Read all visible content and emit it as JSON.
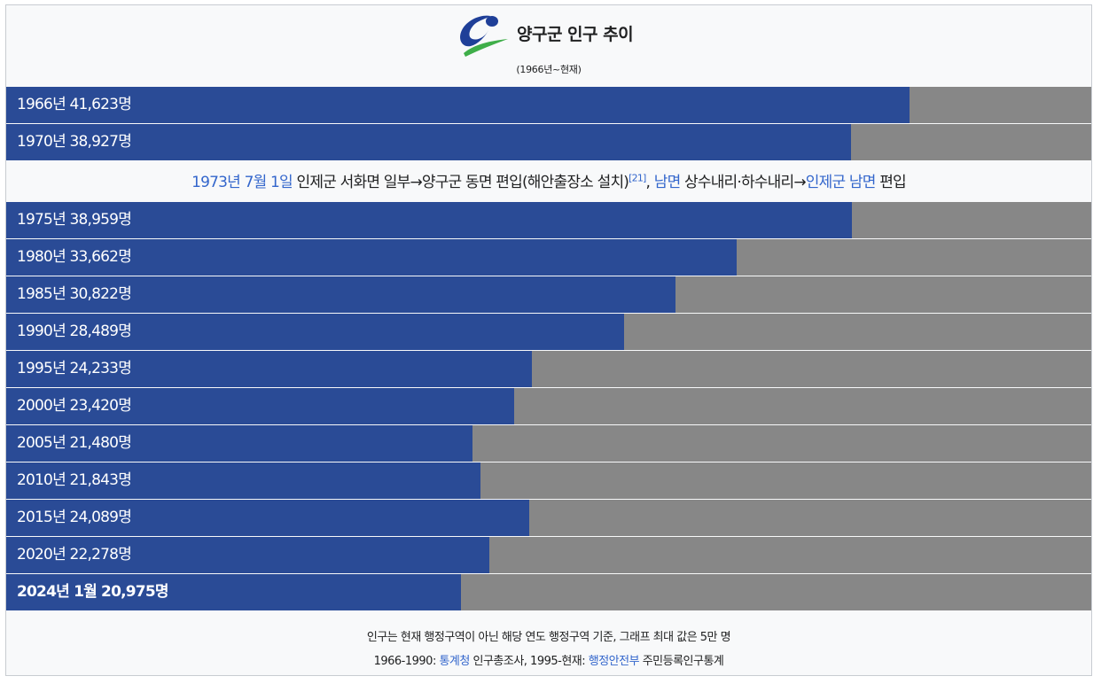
{
  "header": {
    "title": "양구군 인구 추이",
    "subtitle": "(1966년~현재)",
    "logo_icon": "yanggu-emblem-icon"
  },
  "colors": {
    "bar": "#2a4b96",
    "remainder": "#878787",
    "link": "#3366cc",
    "logo_blue": "#1f3f98",
    "logo_green": "#3fae49"
  },
  "chart_data": {
    "type": "bar",
    "orientation": "horizontal",
    "max": 50000,
    "unit": "명",
    "rows": [
      {
        "label": "1966년 41,623명",
        "value": 41623,
        "bold": false
      },
      {
        "label": "1970년 38,927명",
        "value": 38927,
        "bold": false
      },
      {
        "label": "1975년 38,959명",
        "value": 38959,
        "bold": false
      },
      {
        "label": "1980년 33,662명",
        "value": 33662,
        "bold": false
      },
      {
        "label": "1985년 30,822명",
        "value": 30822,
        "bold": false
      },
      {
        "label": "1990년 28,489명",
        "value": 28489,
        "bold": false
      },
      {
        "label": "1995년 24,233명",
        "value": 24233,
        "bold": false
      },
      {
        "label": "2000년 23,420명",
        "value": 23420,
        "bold": false
      },
      {
        "label": "2005년 21,480명",
        "value": 21480,
        "bold": false
      },
      {
        "label": "2010년 21,843명",
        "value": 21843,
        "bold": false
      },
      {
        "label": "2015년 24,089명",
        "value": 24089,
        "bold": false
      },
      {
        "label": "2020년 22,278명",
        "value": 22278,
        "bold": false
      },
      {
        "label": "2024년 1월 20,975명",
        "value": 20975,
        "bold": true
      }
    ]
  },
  "note": {
    "date_link": "1973년 7월 1일",
    "text1": " 인제군 서화면 일부→양구군 동면 편입(해안출장소 설치)",
    "ref": "[21]",
    "sep": ", ",
    "link2": "남면",
    "text2": " 상수내리·하수내리→",
    "link3": "인제군 남면",
    "text3": " 편입"
  },
  "footer": {
    "line1": "인구는 현재 행정구역이 아닌 해당 연도 행정구역 기준, 그래프 최대 값은 5만 명",
    "line2_a": "1966-1990: ",
    "line2_link1": "통계청",
    "line2_b": " 인구총조사, 1995-현재: ",
    "line2_link2": "행정안전부",
    "line2_c": " 주민등록인구통계"
  }
}
